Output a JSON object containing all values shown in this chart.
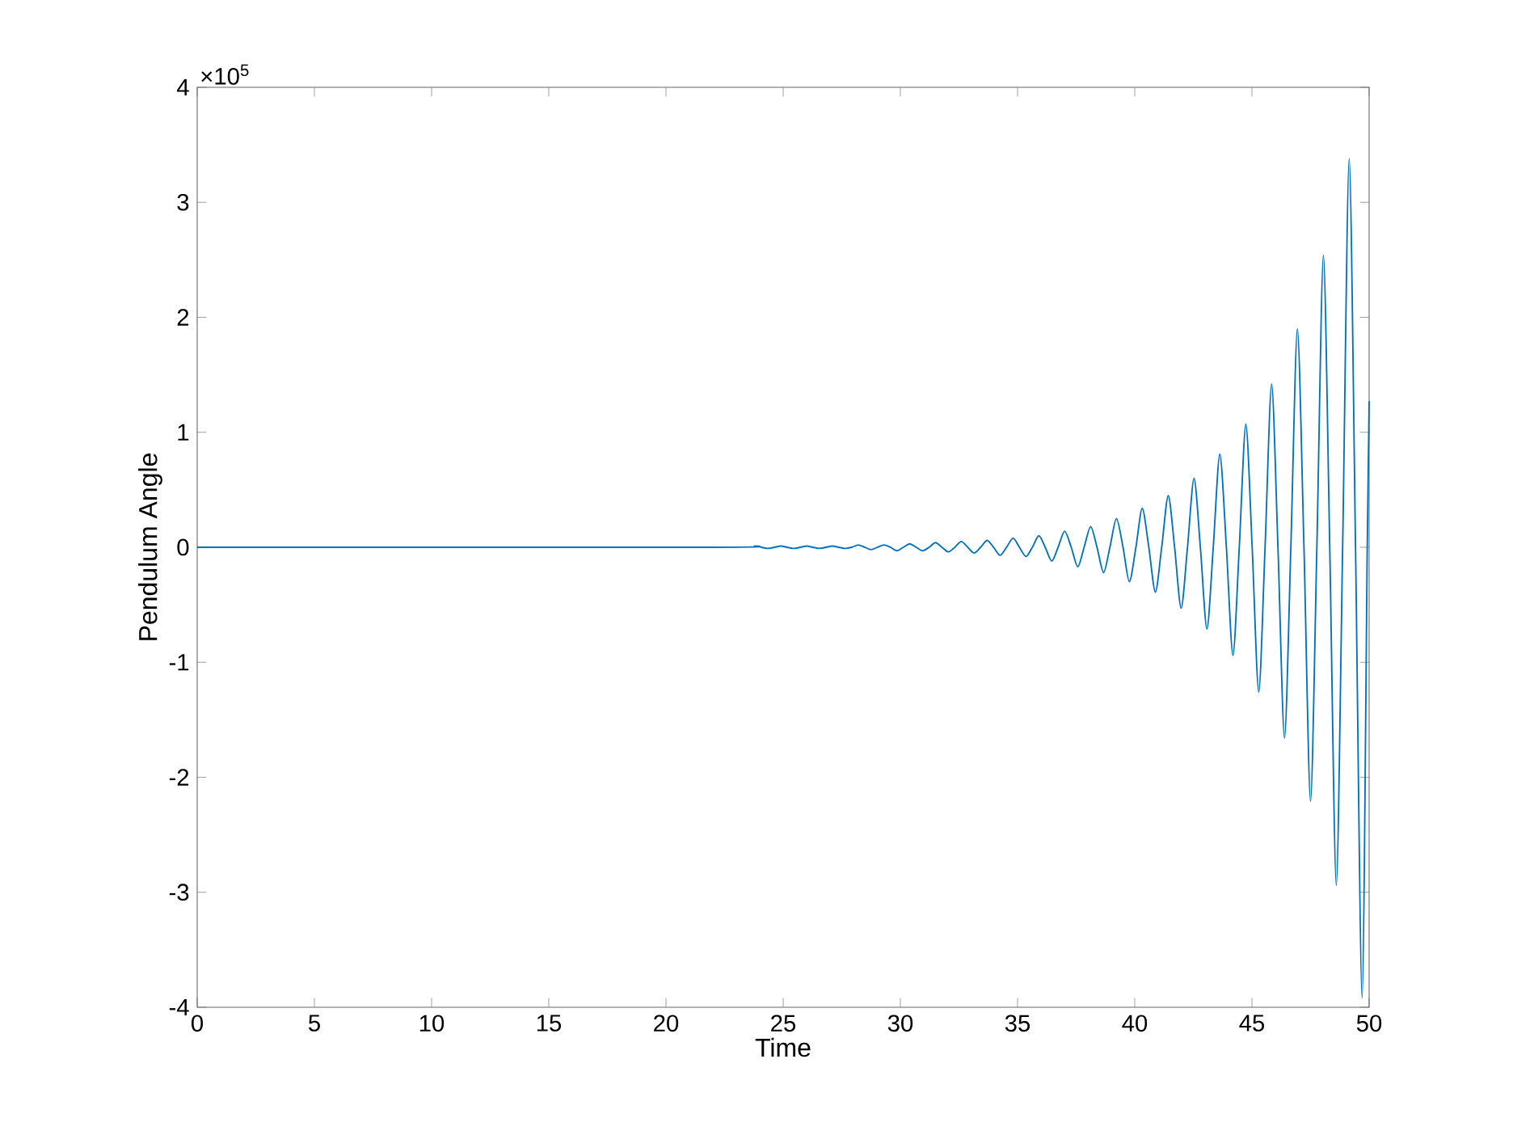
{
  "chart_data": {
    "type": "line",
    "xlabel": "Time",
    "ylabel": "Pendulum Angle",
    "annotations": [
      "×10$^{5}$"
    ],
    "color": "#0072bd",
    "grid": false,
    "xlim": [
      0,
      50
    ],
    "ylim": [
      -4,
      4
    ],
    "xticks": [
      0,
      5,
      10,
      15,
      20,
      25,
      30,
      35,
      40,
      45,
      50
    ],
    "yticks": [
      -4,
      -3,
      -2,
      -1,
      0,
      1,
      2,
      3,
      4
    ],
    "x": [
      0,
      22,
      23.8,
      24.075,
      24.35,
      24.625,
      24.9,
      25.175,
      25.45,
      25.725,
      26.0,
      26.275,
      26.55,
      26.825,
      27.1,
      27.375,
      27.65,
      27.925,
      28.2,
      28.475,
      28.75,
      29.025,
      29.3,
      29.575,
      29.85,
      30.125,
      30.4,
      30.675,
      30.95,
      31.225,
      31.5,
      31.775,
      32.05,
      32.325,
      32.6,
      32.875,
      33.15,
      33.425,
      33.7,
      33.975,
      34.25,
      34.53,
      34.81,
      35.08,
      35.36,
      35.63,
      35.91,
      36.18,
      36.46,
      36.73,
      37.01,
      37.29,
      37.57,
      37.84,
      38.12,
      38.39,
      38.67,
      38.94,
      39.22,
      39.5,
      39.77,
      40.05,
      40.32,
      40.6,
      40.88,
      41.15,
      41.43,
      41.7,
      41.98,
      42.25,
      42.53,
      42.8,
      43.08,
      43.35,
      43.63,
      43.91,
      44.19,
      44.46,
      44.74,
      45.01,
      45.29,
      45.56,
      45.84,
      46.11,
      46.39,
      46.66,
      46.94,
      47.22,
      47.5,
      47.77,
      48.05,
      48.32,
      48.6,
      48.87,
      49.15,
      49.42,
      49.7,
      49.92,
      50
    ],
    "values": [
      0,
      0,
      0.01,
      0,
      -0.01,
      0,
      0.01,
      0,
      -0.01,
      0,
      0.01,
      0,
      -0.01,
      0,
      0.01,
      0,
      -0.01,
      0,
      0.02,
      0,
      -0.02,
      0,
      0.02,
      0,
      -0.03,
      0,
      0.03,
      0,
      -0.03,
      0,
      0.04,
      0,
      -0.04,
      0,
      0.05,
      0,
      -0.05,
      0,
      0.06,
      0,
      -0.07,
      0,
      0.08,
      0,
      -0.08,
      0,
      0.1,
      0,
      -0.12,
      0,
      0.14,
      0,
      -0.17,
      0,
      0.18,
      0,
      -0.22,
      0,
      0.25,
      0,
      -0.3,
      0,
      0.34,
      0,
      -0.39,
      0,
      0.45,
      0,
      -0.53,
      0,
      0.6,
      0,
      -0.71,
      0,
      0.81,
      0,
      -0.94,
      0,
      1.07,
      0,
      -1.26,
      0,
      1.42,
      0,
      -1.66,
      0,
      1.9,
      0,
      -2.21,
      0,
      2.54,
      0,
      -2.94,
      0,
      3.38,
      0,
      -3.92,
      0,
      1.27
    ]
  }
}
